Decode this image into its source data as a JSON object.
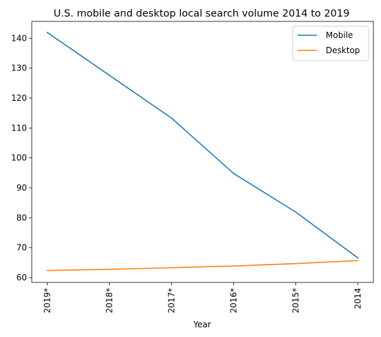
{
  "chart_data": {
    "type": "line",
    "title": "U.S. mobile and desktop local search volume 2014 to 2019",
    "xlabel": "Year",
    "ylabel": "",
    "categories": [
      "2019*",
      "2018*",
      "2017*",
      "2016*",
      "2015*",
      "2014"
    ],
    "series": [
      {
        "name": "Mobile",
        "color": "#1f77b4",
        "values": [
          141.9,
          127.6,
          113.3,
          94.8,
          81.9,
          66.6
        ]
      },
      {
        "name": "Desktop",
        "color": "#ff7f0e",
        "values": [
          62.4,
          62.8,
          63.3,
          63.9,
          64.7,
          65.7
        ]
      }
    ],
    "yticks": [
      60,
      70,
      80,
      90,
      100,
      110,
      120,
      130,
      140
    ],
    "ylim": [
      58.4,
      145.6
    ],
    "grid": false,
    "legend_position": "top-right"
  }
}
